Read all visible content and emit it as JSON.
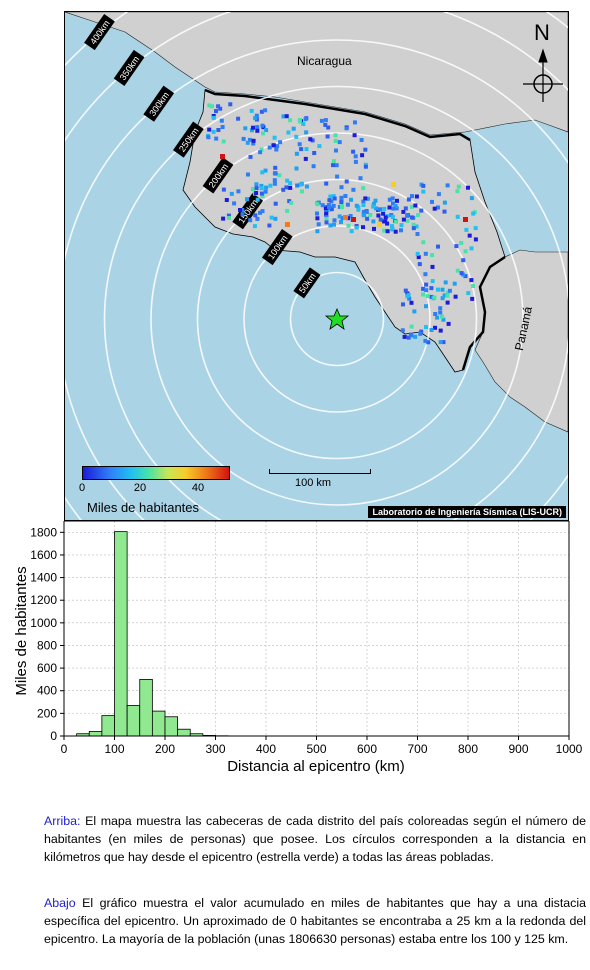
{
  "map": {
    "countries": [
      "Nicaragua",
      "Panamá"
    ],
    "north_label": "N",
    "ring_labels": [
      "50km",
      "100km",
      "150km",
      "200km",
      "250km",
      "300km",
      "350km",
      "400km"
    ],
    "ring_radii_km": [
      50,
      100,
      150,
      200,
      250,
      300,
      350,
      400
    ],
    "scale_label": "100 km",
    "colorbar": {
      "label": "Miles de habitantes",
      "ticks": [
        "0",
        "20",
        "40"
      ],
      "range": [
        0,
        50
      ]
    },
    "credit": "Laboratorio de Ingeniería Sísmica (LIS-UCR)",
    "epicenter_marker": "star-icon",
    "colors": {
      "sea": "#aad3e6",
      "land": "#d0d0d0",
      "ring": "#ffffff",
      "epicenter": "#22cc22"
    }
  },
  "chart_data": {
    "type": "bar",
    "xlabel": "Distancia al epicentro (km)",
    "ylabel": "Miles de habitantes",
    "xlim": [
      0,
      1000
    ],
    "ylim": [
      0,
      1900
    ],
    "xticks": [
      0,
      100,
      200,
      300,
      400,
      500,
      600,
      700,
      800,
      900,
      1000
    ],
    "yticks": [
      0,
      200,
      400,
      600,
      800,
      1000,
      1200,
      1400,
      1600,
      1800
    ],
    "bin_width": 25,
    "bins_start": [
      0,
      25,
      50,
      75,
      100,
      125,
      150,
      175,
      200,
      225,
      250,
      275,
      300
    ],
    "values": [
      0,
      20,
      40,
      180,
      1806,
      270,
      500,
      220,
      170,
      60,
      20,
      5,
      2
    ],
    "bar_color": "#90e890",
    "grid": true
  },
  "captions": {
    "top_lead": "Arriba:",
    "top_text": " El mapa muestra las cabeceras de cada distrito del país coloreadas según el número de habitantes (en miles de personas) que posee. Los círculos corresponden a la distancia en kilómetros que hay desde el epicentro (estrella verde) a todas las áreas pobladas.",
    "bottom_lead": "Abajo",
    "bottom_text": " El gráfico muestra el valor acumulado en miles de habitantes que hay a una distacia específica del epicentro. Un aproximado de 0 habitantes se encontraba a 25 km a la redonda del epicentro. La mayoría de la población (unas 1806630 personas) estaba entre los 100 y 125 km."
  }
}
